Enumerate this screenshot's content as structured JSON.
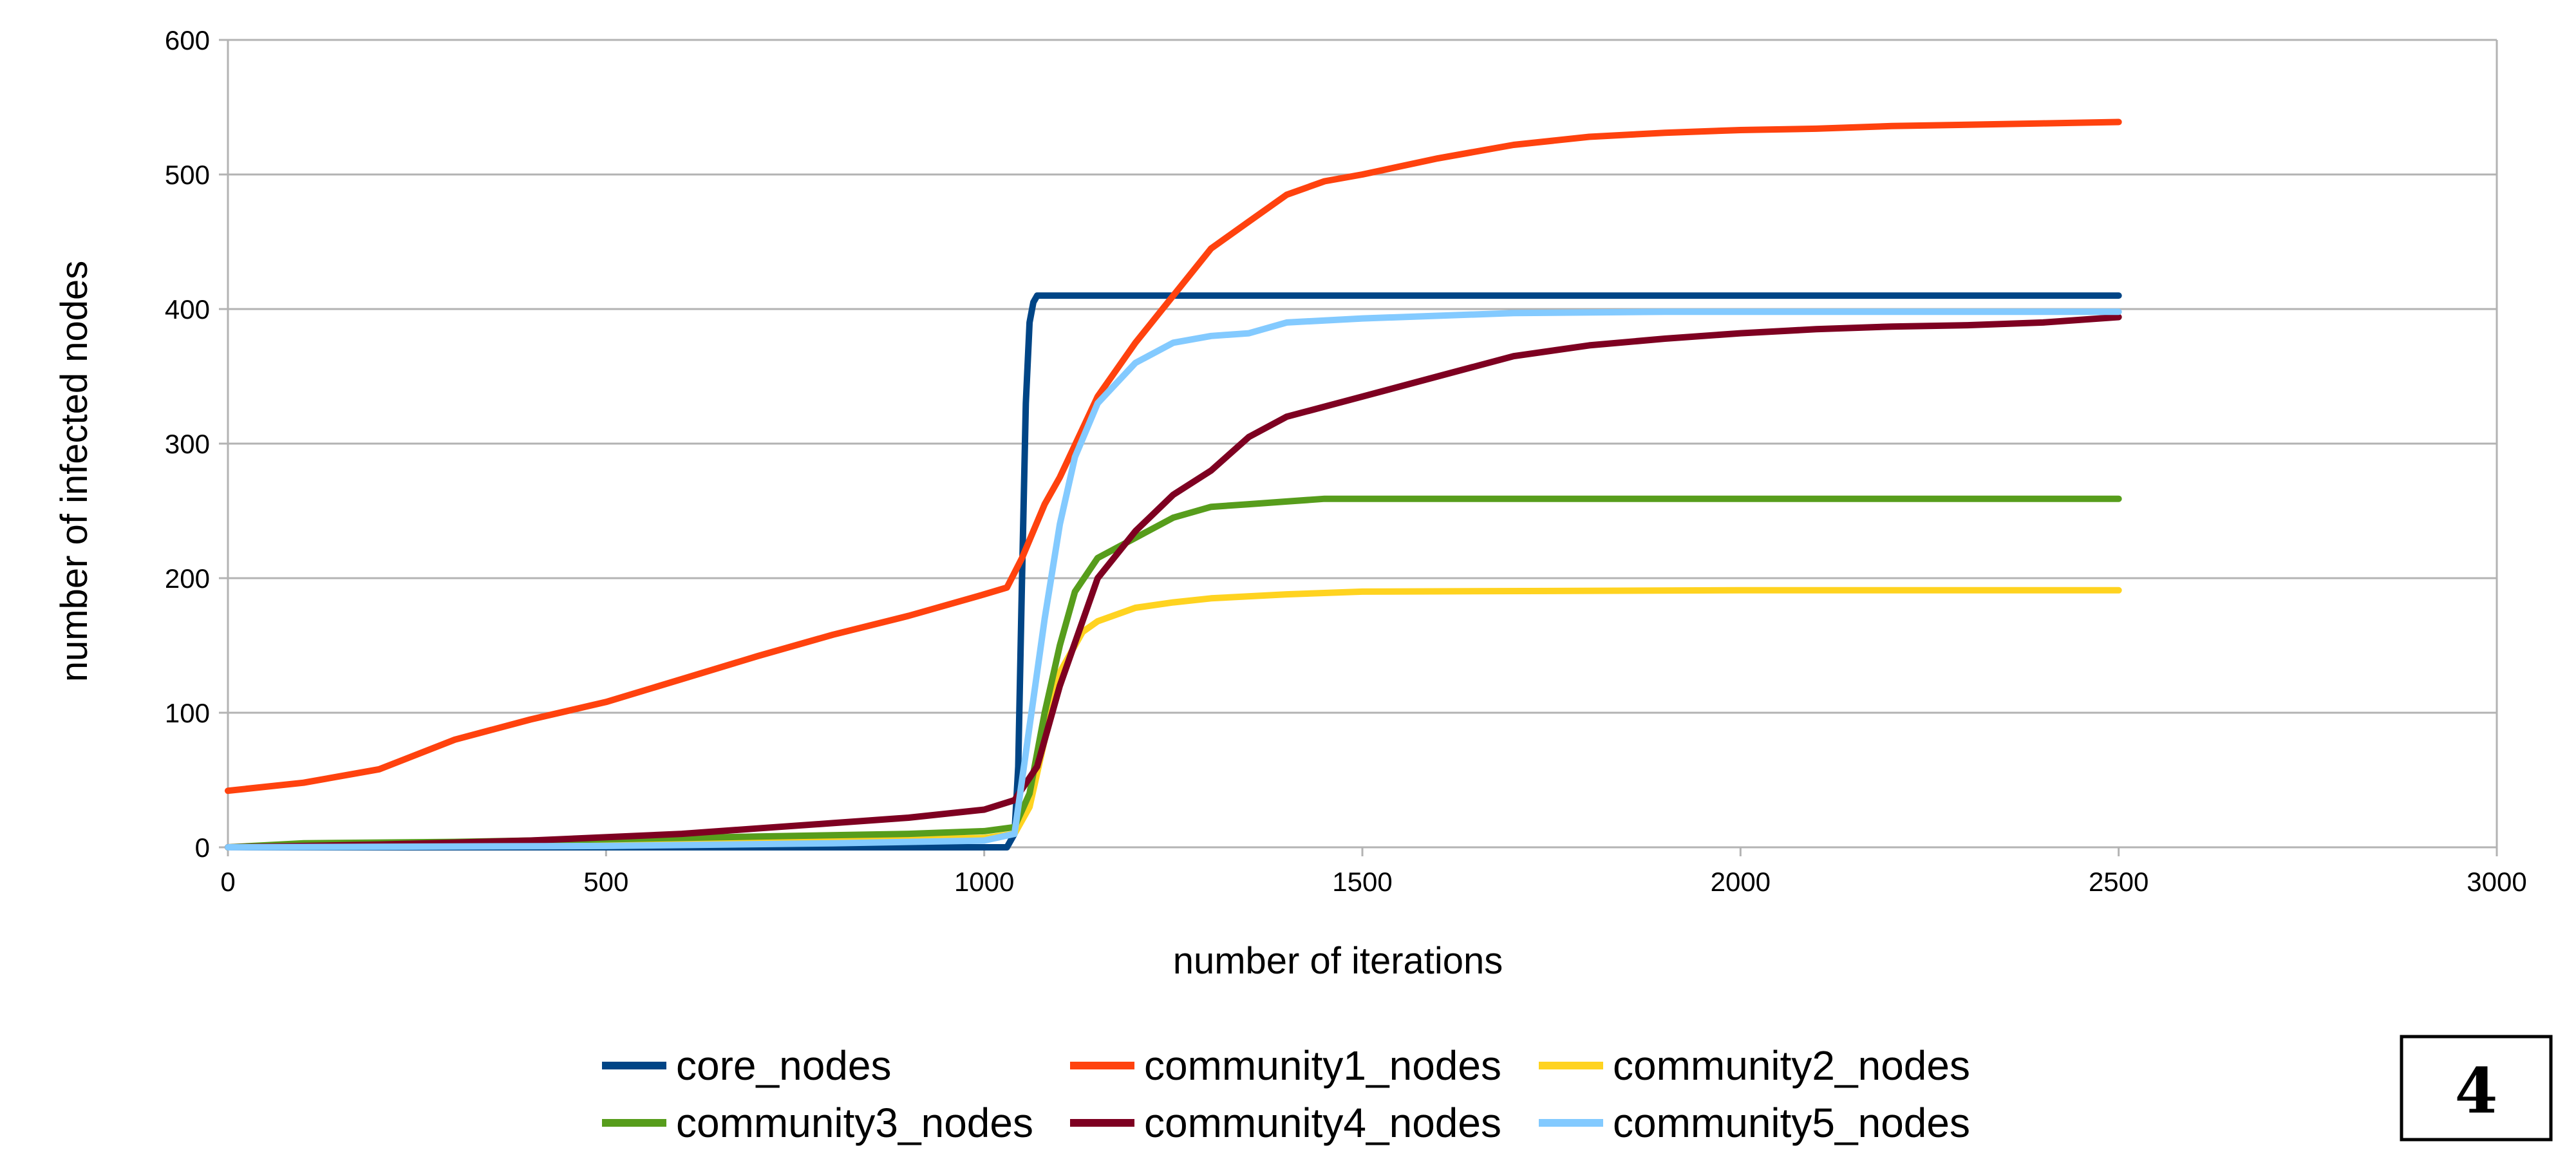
{
  "chart_data": {
    "type": "line",
    "title": "",
    "xlabel": "number of iterations",
    "ylabel": "number of infected nodes",
    "xlim": [
      0,
      3000
    ],
    "ylim": [
      0,
      600
    ],
    "xticks": [
      0,
      500,
      1000,
      1500,
      2000,
      2500,
      3000
    ],
    "yticks": [
      0,
      100,
      200,
      300,
      400,
      500,
      600
    ],
    "grid": "horizontal",
    "legend_position": "bottom",
    "series": [
      {
        "name": "core_nodes",
        "color": "#004586",
        "points": [
          [
            0,
            0
          ],
          [
            500,
            0
          ],
          [
            1000,
            0
          ],
          [
            1030,
            0
          ],
          [
            1040,
            10
          ],
          [
            1045,
            60
          ],
          [
            1050,
            200
          ],
          [
            1055,
            330
          ],
          [
            1060,
            390
          ],
          [
            1065,
            405
          ],
          [
            1070,
            410
          ],
          [
            1500,
            410
          ],
          [
            2000,
            410
          ],
          [
            2500,
            410
          ]
        ]
      },
      {
        "name": "community1_nodes",
        "color": "#ff420e",
        "points": [
          [
            0,
            42
          ],
          [
            100,
            48
          ],
          [
            200,
            58
          ],
          [
            300,
            80
          ],
          [
            400,
            95
          ],
          [
            500,
            108
          ],
          [
            600,
            125
          ],
          [
            700,
            142
          ],
          [
            800,
            158
          ],
          [
            900,
            172
          ],
          [
            1000,
            188
          ],
          [
            1030,
            193
          ],
          [
            1050,
            215
          ],
          [
            1080,
            255
          ],
          [
            1100,
            275
          ],
          [
            1150,
            335
          ],
          [
            1200,
            375
          ],
          [
            1250,
            410
          ],
          [
            1300,
            445
          ],
          [
            1350,
            465
          ],
          [
            1400,
            485
          ],
          [
            1450,
            495
          ],
          [
            1500,
            500
          ],
          [
            1600,
            512
          ],
          [
            1700,
            522
          ],
          [
            1800,
            528
          ],
          [
            1900,
            531
          ],
          [
            2000,
            533
          ],
          [
            2100,
            534
          ],
          [
            2200,
            536
          ],
          [
            2300,
            537
          ],
          [
            2400,
            538
          ],
          [
            2500,
            539
          ]
        ]
      },
      {
        "name": "community2_nodes",
        "color": "#ffd320",
        "points": [
          [
            0,
            0
          ],
          [
            200,
            2
          ],
          [
            400,
            3
          ],
          [
            600,
            4
          ],
          [
            800,
            5
          ],
          [
            1000,
            7
          ],
          [
            1040,
            10
          ],
          [
            1060,
            30
          ],
          [
            1080,
            80
          ],
          [
            1100,
            130
          ],
          [
            1130,
            160
          ],
          [
            1150,
            168
          ],
          [
            1200,
            178
          ],
          [
            1250,
            182
          ],
          [
            1300,
            185
          ],
          [
            1400,
            188
          ],
          [
            1500,
            190
          ],
          [
            2000,
            191
          ],
          [
            2500,
            191
          ]
        ]
      },
      {
        "name": "community3_nodes",
        "color": "#579d1c",
        "points": [
          [
            0,
            0
          ],
          [
            100,
            3
          ],
          [
            300,
            4
          ],
          [
            500,
            6
          ],
          [
            700,
            8
          ],
          [
            900,
            10
          ],
          [
            1000,
            12
          ],
          [
            1040,
            15
          ],
          [
            1060,
            40
          ],
          [
            1080,
            100
          ],
          [
            1100,
            150
          ],
          [
            1120,
            190
          ],
          [
            1150,
            215
          ],
          [
            1200,
            230
          ],
          [
            1250,
            245
          ],
          [
            1300,
            253
          ],
          [
            1350,
            255
          ],
          [
            1400,
            257
          ],
          [
            1450,
            259
          ],
          [
            1500,
            259
          ],
          [
            2000,
            259
          ],
          [
            2500,
            259
          ]
        ]
      },
      {
        "name": "community4_nodes",
        "color": "#7e0021",
        "points": [
          [
            0,
            0
          ],
          [
            200,
            2
          ],
          [
            400,
            5
          ],
          [
            600,
            10
          ],
          [
            700,
            14
          ],
          [
            800,
            18
          ],
          [
            900,
            22
          ],
          [
            1000,
            28
          ],
          [
            1040,
            35
          ],
          [
            1070,
            60
          ],
          [
            1100,
            120
          ],
          [
            1150,
            200
          ],
          [
            1200,
            235
          ],
          [
            1250,
            262
          ],
          [
            1300,
            280
          ],
          [
            1350,
            305
          ],
          [
            1400,
            320
          ],
          [
            1500,
            335
          ],
          [
            1600,
            350
          ],
          [
            1700,
            365
          ],
          [
            1800,
            373
          ],
          [
            1900,
            378
          ],
          [
            2000,
            382
          ],
          [
            2100,
            385
          ],
          [
            2200,
            387
          ],
          [
            2300,
            388
          ],
          [
            2400,
            390
          ],
          [
            2500,
            394
          ]
        ]
      },
      {
        "name": "community5_nodes",
        "color": "#83caff",
        "points": [
          [
            0,
            0
          ],
          [
            500,
            1
          ],
          [
            800,
            3
          ],
          [
            1000,
            5
          ],
          [
            1040,
            10
          ],
          [
            1060,
            90
          ],
          [
            1080,
            170
          ],
          [
            1100,
            240
          ],
          [
            1120,
            290
          ],
          [
            1150,
            330
          ],
          [
            1200,
            360
          ],
          [
            1250,
            375
          ],
          [
            1300,
            380
          ],
          [
            1350,
            382
          ],
          [
            1400,
            390
          ],
          [
            1500,
            393
          ],
          [
            1700,
            397
          ],
          [
            1900,
            398
          ],
          [
            2100,
            398
          ],
          [
            2300,
            398
          ],
          [
            2500,
            398
          ]
        ]
      }
    ]
  },
  "badge": {
    "label": "4"
  }
}
